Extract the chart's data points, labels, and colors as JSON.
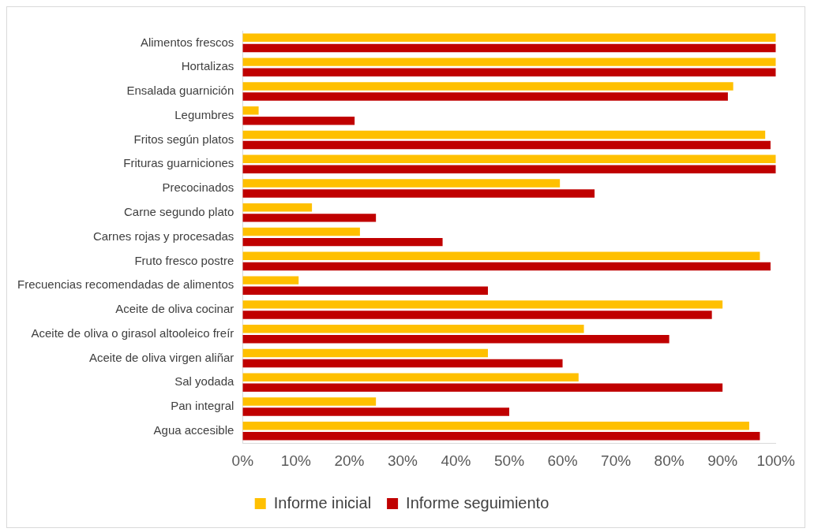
{
  "chart_data": {
    "type": "bar",
    "orientation": "horizontal",
    "categories": [
      "Alimentos frescos",
      "Hortalizas",
      "Ensalada guarnición",
      "Legumbres",
      "Fritos según platos",
      "Frituras guarniciones",
      "Precocinados",
      "Carne segundo plato",
      "Carnes rojas y procesadas",
      "Fruto fresco postre",
      "Frecuencias recomendadas de alimentos",
      "Aceite de oliva cocinar",
      "Aceite de oliva o girasol altooleico freír",
      "Aceite de oliva virgen aliñar",
      "Sal yodada",
      "Pan integral",
      "Agua accesible"
    ],
    "series": [
      {
        "name": "Informe inicial",
        "color": "#ffc000",
        "values": [
          100,
          100,
          92,
          3,
          98,
          100,
          59.5,
          13,
          22,
          97,
          10.5,
          90,
          64,
          46,
          63,
          25,
          95
        ]
      },
      {
        "name": "Informe seguimiento",
        "color": "#c00000",
        "values": [
          100,
          100,
          91,
          21,
          99,
          100,
          66,
          25,
          37.5,
          99,
          46,
          88,
          80,
          60,
          90,
          50,
          97
        ]
      }
    ],
    "xlim": [
      0,
      100
    ],
    "xticks": [
      {
        "value": 0,
        "label": "0%"
      },
      {
        "value": 10,
        "label": "10%"
      },
      {
        "value": 20,
        "label": "20%"
      },
      {
        "value": 30,
        "label": "30%"
      },
      {
        "value": 40,
        "label": "40%"
      },
      {
        "value": 50,
        "label": "50%"
      },
      {
        "value": 60,
        "label": "60%"
      },
      {
        "value": 70,
        "label": "70%"
      },
      {
        "value": 80,
        "label": "80%"
      },
      {
        "value": 90,
        "label": "90%"
      },
      {
        "value": 100,
        "label": "100%"
      }
    ],
    "grid": false,
    "legend": "bottom"
  }
}
